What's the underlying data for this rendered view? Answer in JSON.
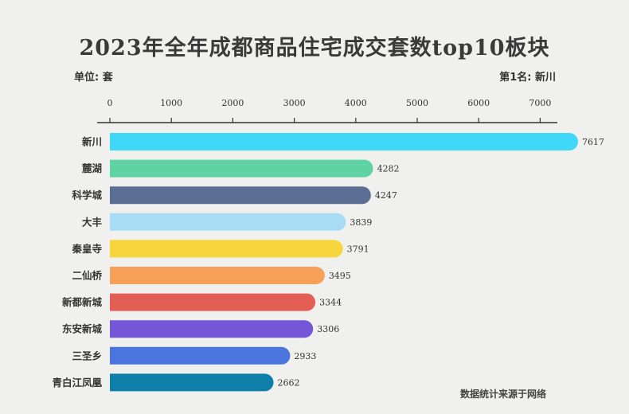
{
  "title": "2023年全年成都商品住宅成交套数top10板块",
  "unit_text": "单位: 套",
  "rank_text": "第1名:  新川",
  "source_text": "数据统计来源于网络",
  "chart_data": {
    "type": "bar",
    "orientation": "horizontal",
    "title": "2023年全年成都商品住宅成交套数top10板块",
    "categories": [
      "新川",
      "麓湖",
      "科学城",
      "大丰",
      "秦皇寺",
      "二仙桥",
      "新都新城",
      "东安新城",
      "三圣乡",
      "青白江凤凰"
    ],
    "values": [
      7617,
      4282,
      4247,
      3839,
      3791,
      3495,
      3344,
      3306,
      2933,
      2662
    ],
    "colors": [
      "#3fd8f8",
      "#5fd4a2",
      "#5d6e95",
      "#a8dcf5",
      "#f6d53d",
      "#f6a05a",
      "#e35f55",
      "#7456d6",
      "#4c74dd",
      "#0d7fa8"
    ],
    "xticks": [
      0,
      1000,
      2000,
      3000,
      4000,
      5000,
      6000,
      7000
    ],
    "xlim": [
      0,
      7617
    ],
    "axis_position": "top",
    "grid": false,
    "legend": "none"
  }
}
